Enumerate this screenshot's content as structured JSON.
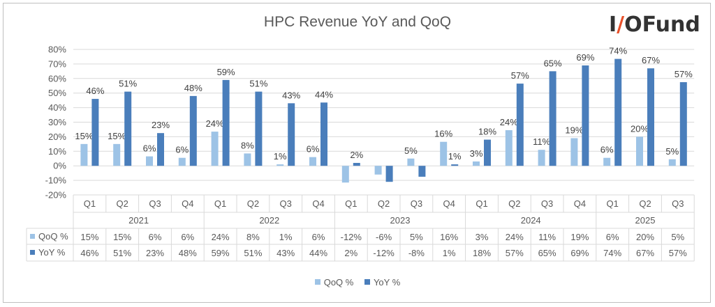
{
  "colors": {
    "qoq": "#9dc3e6",
    "yoy": "#4a7ebb",
    "grid": "#d9d9d9",
    "text": "#595959",
    "brand_slash": "#e8502a"
  },
  "logo": {
    "part1": "I",
    "slash": "/",
    "part2": "OFund"
  },
  "chart_data": {
    "type": "bar",
    "title": "HPC Revenue YoY and QoQ",
    "xlabel": "",
    "ylabel": "",
    "ylim": [
      -20,
      80
    ],
    "yticks": [
      "-20%",
      "-10%",
      "0%",
      "10%",
      "20%",
      "30%",
      "40%",
      "50%",
      "60%",
      "70%",
      "80%"
    ],
    "grid": true,
    "legend_position": "bottom",
    "quarters": [
      "Q1",
      "Q2",
      "Q3",
      "Q4",
      "Q1",
      "Q2",
      "Q3",
      "Q4",
      "Q1",
      "Q2",
      "Q3",
      "Q4",
      "Q1",
      "Q2",
      "Q3",
      "Q4",
      "Q1",
      "Q2",
      "Q3"
    ],
    "years": [
      {
        "label": "2021",
        "count": 4
      },
      {
        "label": "2022",
        "count": 4
      },
      {
        "label": "2023",
        "count": 4
      },
      {
        "label": "2024",
        "count": 4
      },
      {
        "label": "2025",
        "count": 3
      }
    ],
    "series": [
      {
        "name": "QoQ %",
        "values": [
          15,
          15,
          6,
          6,
          24,
          8,
          1,
          6,
          -12,
          -6,
          5,
          16,
          3,
          24,
          11,
          19,
          6,
          20,
          5
        ],
        "bar_values": [
          15,
          15,
          6.5,
          5.5,
          23.5,
          8.5,
          1,
          6,
          -11.5,
          -6,
          5,
          16.5,
          3,
          24.5,
          11,
          19,
          5.5,
          20,
          4.5
        ],
        "data_labels": [
          "15%",
          "15%",
          "6%",
          "6%",
          "24%",
          "8%",
          "1%",
          "6%",
          "",
          "",
          "5%",
          "16%",
          "3%",
          "24%",
          "11%",
          "19%",
          "6%",
          "20%",
          "5%"
        ]
      },
      {
        "name": "YoY %",
        "values": [
          46,
          51,
          23,
          48,
          59,
          51,
          43,
          44,
          2,
          -12,
          -8,
          1,
          18,
          57,
          65,
          69,
          74,
          67,
          57
        ],
        "bar_values": [
          46,
          51,
          22.5,
          48,
          59,
          51,
          43,
          43.5,
          2,
          -11,
          -7.5,
          1,
          18,
          56.5,
          65,
          69,
          73.5,
          67,
          57.5
        ],
        "data_labels": [
          "46%",
          "51%",
          "23%",
          "48%",
          "59%",
          "51%",
          "43%",
          "44%",
          "2%",
          "",
          "",
          "1%",
          "18%",
          "57%",
          "65%",
          "69%",
          "74%",
          "67%",
          "57%"
        ]
      }
    ],
    "table": {
      "rows": [
        {
          "label": "QoQ %",
          "cells": [
            "15%",
            "15%",
            "6%",
            "6%",
            "24%",
            "8%",
            "1%",
            "6%",
            "-12%",
            "-6%",
            "5%",
            "16%",
            "3%",
            "24%",
            "11%",
            "19%",
            "6%",
            "20%",
            "5%"
          ]
        },
        {
          "label": "YoY %",
          "cells": [
            "46%",
            "51%",
            "23%",
            "48%",
            "59%",
            "51%",
            "43%",
            "44%",
            "2%",
            "-12%",
            "-8%",
            "1%",
            "18%",
            "57%",
            "65%",
            "69%",
            "74%",
            "67%",
            "57%"
          ]
        }
      ]
    }
  }
}
